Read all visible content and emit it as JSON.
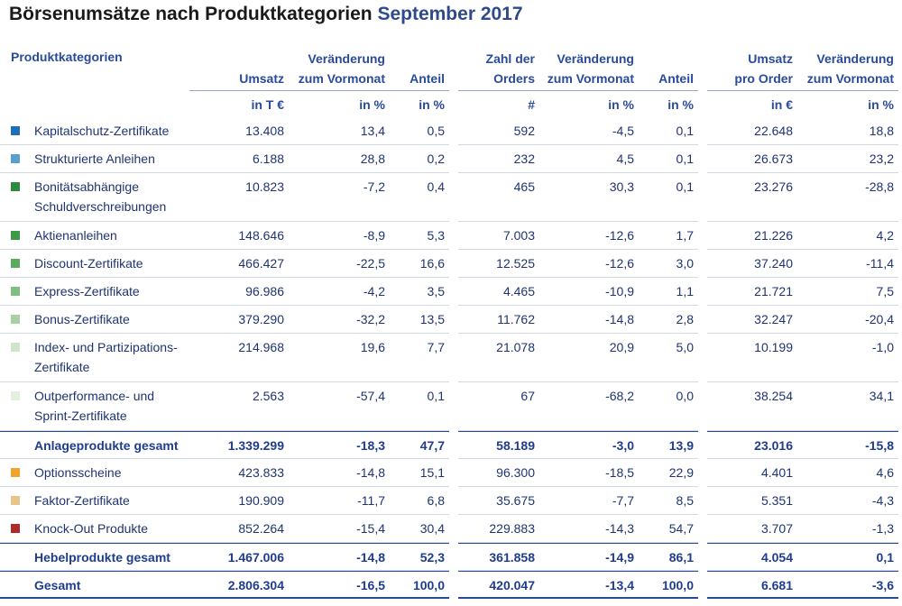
{
  "title": {
    "main": "Börsenumsätze nach Produktkategorien",
    "period": "September 2017"
  },
  "headers": {
    "category": "Produktkategorien",
    "columns": [
      [
        "Umsatz"
      ],
      [
        "Veränderung",
        "zum Vormonat"
      ],
      [
        "Anteil"
      ],
      [
        "Zahl der",
        "Orders"
      ],
      [
        "Veränderung",
        "zum Vormonat"
      ],
      [
        "Anteil"
      ],
      [
        "Umsatz",
        "pro Order"
      ],
      [
        "Veränderung",
        "zum Vormonat"
      ]
    ],
    "units": [
      "in T €",
      "in %",
      "in %",
      "#",
      "in %",
      "in %",
      "in €",
      "in %"
    ]
  },
  "rows": [
    {
      "label": "Kapitalschutz-Zertifikate",
      "color": "#1f6fb5",
      "values": [
        "13.408",
        "13,4",
        "0,5",
        "592",
        "-4,5",
        "0,1",
        "22.648",
        "18,8"
      ]
    },
    {
      "label": "Strukturierte Anleihen",
      "color": "#5b9fd1",
      "values": [
        "6.188",
        "28,8",
        "0,2",
        "232",
        "4,5",
        "0,1",
        "26.673",
        "23,2"
      ]
    },
    {
      "label": "Bonitätsabhängige Schuldverschreibungen",
      "color": "#2e8b3d",
      "values": [
        "10.823",
        "-7,2",
        "0,4",
        "465",
        "30,3",
        "0,1",
        "23.276",
        "-28,8"
      ]
    },
    {
      "label": "Aktienanleihen",
      "color": "#3d9a47",
      "values": [
        "148.646",
        "-8,9",
        "5,3",
        "7.003",
        "-12,6",
        "1,7",
        "21.226",
        "4,2"
      ]
    },
    {
      "label": "Discount-Zertifikate",
      "color": "#5aab5f",
      "values": [
        "466.427",
        "-22,5",
        "16,6",
        "12.525",
        "-12,6",
        "3,0",
        "37.240",
        "-11,4"
      ]
    },
    {
      "label": "Express-Zertifikate",
      "color": "#7fbf7f",
      "values": [
        "96.986",
        "-4,2",
        "3,5",
        "4.465",
        "-10,9",
        "1,1",
        "21.721",
        "7,5"
      ]
    },
    {
      "label": "Bonus-Zertifikate",
      "color": "#a9cfa4",
      "values": [
        "379.290",
        "-32,2",
        "13,5",
        "11.762",
        "-14,8",
        "2,8",
        "32.247",
        "-20,4"
      ]
    },
    {
      "label": "Index- und Partizipations-Zertifikate",
      "color": "#cfe5c9",
      "values": [
        "214.968",
        "19,6",
        "7,7",
        "21.078",
        "20,9",
        "5,0",
        "10.199",
        "-1,0"
      ]
    },
    {
      "label": "Outperformance- und Sprint-Zertifikate",
      "color": "#e3f0df",
      "values": [
        "2.563",
        "-57,4",
        "0,1",
        "67",
        "-68,2",
        "0,0",
        "38.254",
        "34,1"
      ]
    }
  ],
  "subtotal1": {
    "label": "Anlageprodukte gesamt",
    "values": [
      "1.339.299",
      "-18,3",
      "47,7",
      "58.189",
      "-3,0",
      "13,9",
      "23.016",
      "-15,8"
    ]
  },
  "rows2": [
    {
      "label": "Optionsscheine",
      "color": "#f0a430",
      "values": [
        "423.833",
        "-14,8",
        "15,1",
        "96.300",
        "-18,5",
        "22,9",
        "4.401",
        "4,6"
      ]
    },
    {
      "label": "Faktor-Zertifikate",
      "color": "#e8c48a",
      "values": [
        "190.909",
        "-11,7",
        "6,8",
        "35.675",
        "-7,7",
        "8,5",
        "5.351",
        "-4,3"
      ]
    },
    {
      "label": "Knock-Out Produkte",
      "color": "#b02a2a",
      "values": [
        "852.264",
        "-15,4",
        "30,4",
        "229.883",
        "-14,3",
        "54,7",
        "3.707",
        "-1,3"
      ]
    }
  ],
  "subtotal2": {
    "label": "Hebelprodukte gesamt",
    "values": [
      "1.467.006",
      "-14,8",
      "52,3",
      "361.858",
      "-14,9",
      "86,1",
      "4.054",
      "0,1"
    ]
  },
  "total": {
    "label": "Gesamt",
    "values": [
      "2.806.304",
      "-16,5",
      "100,0",
      "420.047",
      "-13,4",
      "100,0",
      "6.681",
      "-3,6"
    ]
  }
}
